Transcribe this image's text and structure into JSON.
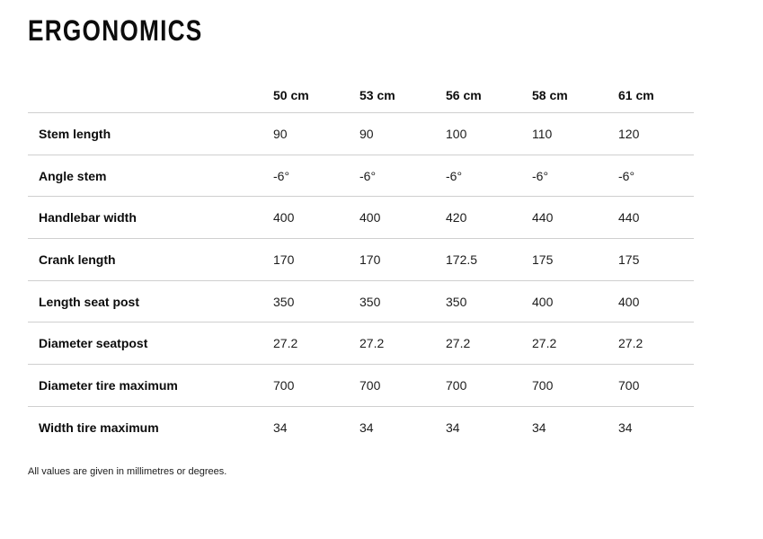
{
  "page": {
    "title": "ERGONOMICS",
    "footnote": "All values are given in millimetres or degrees."
  },
  "table": {
    "column_headers": [
      "50 cm",
      "53 cm",
      "56 cm",
      "58 cm",
      "61 cm"
    ],
    "rows": [
      {
        "label": "Stem length",
        "values": [
          "90",
          "90",
          "100",
          "110",
          "120"
        ]
      },
      {
        "label": "Angle stem",
        "values": [
          "-6°",
          "-6°",
          "-6°",
          "-6°",
          "-6°"
        ]
      },
      {
        "label": "Handlebar width",
        "values": [
          "400",
          "400",
          "420",
          "440",
          "440"
        ]
      },
      {
        "label": "Crank length",
        "values": [
          "170",
          "170",
          "172.5",
          "175",
          "175"
        ]
      },
      {
        "label": "Length seat post",
        "values": [
          "350",
          "350",
          "350",
          "400",
          "400"
        ]
      },
      {
        "label": "Diameter seatpost",
        "values": [
          "27.2",
          "27.2",
          "27.2",
          "27.2",
          "27.2"
        ]
      },
      {
        "label": "Diameter tire maximum",
        "values": [
          "700",
          "700",
          "700",
          "700",
          "700"
        ]
      },
      {
        "label": "Width tire maximum",
        "values": [
          "34",
          "34",
          "34",
          "34",
          "34"
        ]
      }
    ]
  },
  "colors": {
    "background": "#ffffff",
    "text": "#0c0c0c",
    "divider": "#cfcfcf"
  }
}
